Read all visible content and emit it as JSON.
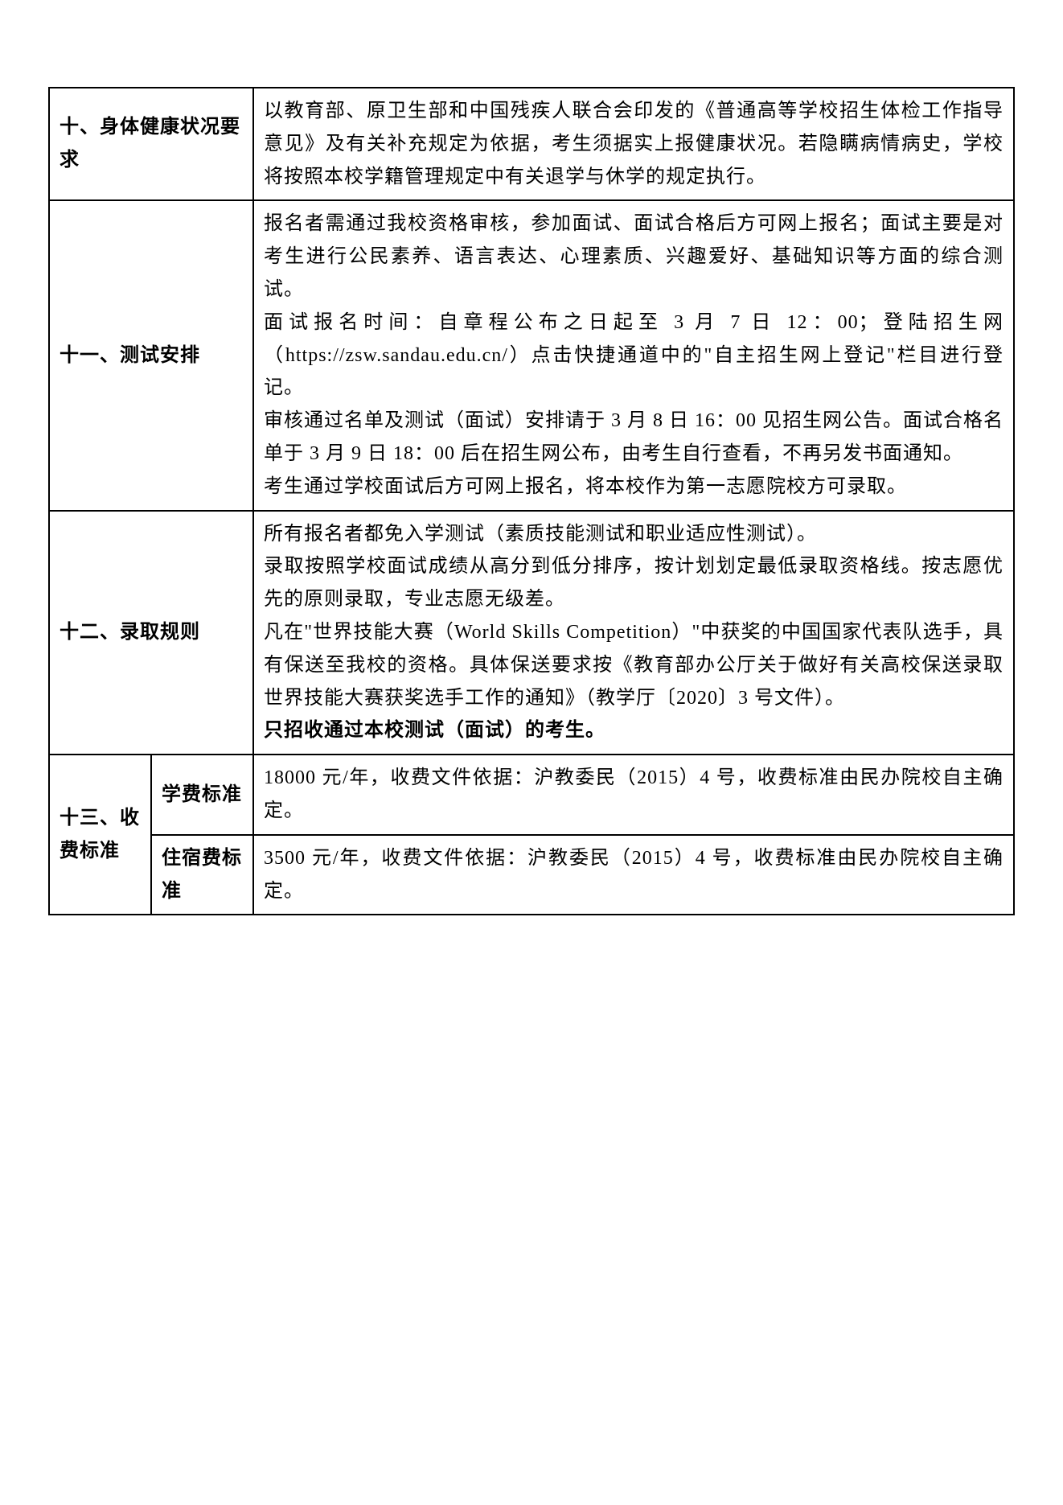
{
  "rows": {
    "health": {
      "label": "十、身体健康状况要求",
      "content": "以教育部、原卫生部和中国残疾人联合会印发的《普通高等学校招生体检工作指导意见》及有关补充规定为依据，考生须据实上报健康状况。若隐瞒病情病史，学校将按照本校学籍管理规定中有关退学与休学的规定执行。"
    },
    "exam": {
      "label": "十一、测试安排",
      "content": "报名者需通过我校资格审核，参加面试、面试合格后方可网上报名；面试主要是对考生进行公民素养、语言表达、心理素质、兴趣爱好、基础知识等方面的综合测试。\n面试报名时间：自章程公布之日起至 3 月 7 日 12：00；登陆招生网（https://zsw.sandau.edu.cn/）点击快捷通道中的\"自主招生网上登记\"栏目进行登记。\n审核通过名单及测试（面试）安排请于 3 月 8 日 16：00 见招生网公告。面试合格名单于 3 月 9 日 18：00 后在招生网公布，由考生自行查看，不再另发书面通知。\n考生通过学校面试后方可网上报名，将本校作为第一志愿院校方可录取。"
    },
    "admission": {
      "label": "十二、录取规则",
      "content_p1": "所有报名者都免入学测试（素质技能测试和职业适应性测试）。\n录取按照学校面试成绩从高分到低分排序，按计划划定最低录取资格线。按志愿优先的原则录取，专业志愿无级差。\n凡在\"世界技能大赛（World Skills Competition）\"中获奖的中国国家代表队选手，具有保送至我校的资格。具体保送要求按《教育部办公厅关于做好有关高校保送录取世界技能大赛获奖选手工作的通知》（教学厅〔2020〕3 号文件）。",
      "content_p2": "只招收通过本校测试（面试）的考生。"
    },
    "fee": {
      "label": "十三、收费标准",
      "tuition_label": "学费标准",
      "tuition_content": "18000 元/年，收费文件依据：沪教委民（2015）4 号，收费标准由民办院校自主确定。",
      "dorm_label": "住宿费标准",
      "dorm_content": "3500 元/年，收费文件依据：沪教委民（2015）4 号，收费标准由民办院校自主确定。"
    }
  },
  "style": {
    "font_size": 24,
    "line_height": 1.7,
    "border_color": "#000000",
    "bg_color": "#ffffff",
    "text_color": "#000000",
    "col1_width": 127,
    "col2_width": 127
  }
}
